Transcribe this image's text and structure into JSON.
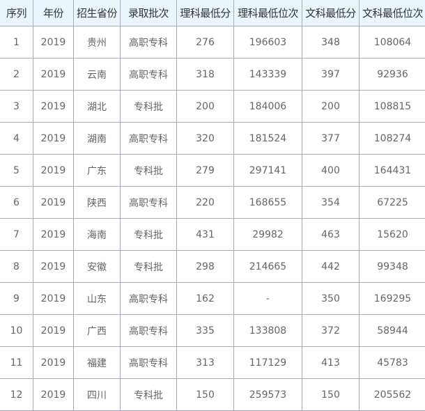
{
  "table": {
    "headers": [
      "序列",
      "年份",
      "招生省份",
      "录取批次",
      "理科最低分",
      "理科最低位次",
      "文科最低分",
      "文科最低位次"
    ],
    "rows": [
      [
        "1",
        "2019",
        "贵州",
        "高职专科",
        "276",
        "196603",
        "348",
        "108064"
      ],
      [
        "2",
        "2019",
        "云南",
        "高职专科",
        "318",
        "143339",
        "397",
        "92936"
      ],
      [
        "3",
        "2019",
        "湖北",
        "专科批",
        "200",
        "184006",
        "200",
        "108815"
      ],
      [
        "4",
        "2019",
        "湖南",
        "高职专科",
        "320",
        "181524",
        "377",
        "108274"
      ],
      [
        "5",
        "2019",
        "广东",
        "专科批",
        "279",
        "297141",
        "400",
        "164431"
      ],
      [
        "6",
        "2019",
        "陕西",
        "高职专科",
        "220",
        "168655",
        "354",
        "67225"
      ],
      [
        "7",
        "2019",
        "海南",
        "专科批",
        "431",
        "29982",
        "463",
        "15620"
      ],
      [
        "8",
        "2019",
        "安徽",
        "专科批",
        "298",
        "214665",
        "442",
        "99348"
      ],
      [
        "9",
        "2019",
        "山东",
        "高职专科",
        "162",
        "-",
        "350",
        "169295"
      ],
      [
        "10",
        "2019",
        "广西",
        "高职专科",
        "335",
        "133808",
        "372",
        "58944"
      ],
      [
        "11",
        "2019",
        "福建",
        "高职专科",
        "313",
        "117129",
        "413",
        "45783"
      ],
      [
        "12",
        "2019",
        "四川",
        "专科批",
        "150",
        "259573",
        "150",
        "205562"
      ]
    ]
  }
}
